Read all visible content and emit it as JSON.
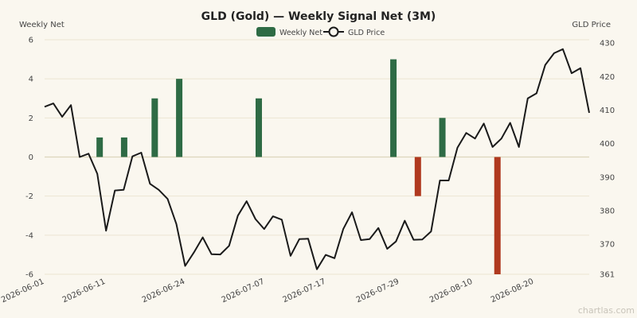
{
  "chart_data": {
    "type": "bar+line",
    "title": "GLD (Gold) — Weekly Signal Net (3M)",
    "y_left_label": "Weekly Net",
    "y_right_label": "GLD Price",
    "y_left_lim": [
      -6,
      6
    ],
    "y_right_lim": [
      361,
      431
    ],
    "y_left_ticks": [
      6,
      4,
      2,
      0,
      -2,
      -4,
      -6
    ],
    "y_right_ticks": [
      430,
      420,
      410,
      400,
      390,
      380,
      370,
      361
    ],
    "x_tick_labels": [
      "2026-06-01",
      "2026-06-11",
      "2026-06-24",
      "2026-07-07",
      "2026-07-17",
      "2026-07-29",
      "2026-08-10",
      "2026-08-20"
    ],
    "legend": [
      "Weekly Net",
      "GLD Price"
    ],
    "legend_position": "top-center",
    "grid": true,
    "colors": {
      "positive": "#2e6b45",
      "negative": "#b0391f",
      "line": "#1a1a1a",
      "grid": "#ece6d2",
      "zero_line": "#ddd6bc"
    },
    "bars": {
      "name": "Weekly Net",
      "dates": [
        "2026-06-10",
        "2026-06-14",
        "2026-06-19",
        "2026-06-23",
        "2026-07-06",
        "2026-07-28",
        "2026-08-01",
        "2026-08-05",
        "2026-08-14",
        "2026-08-19"
      ],
      "values": [
        1,
        1,
        3,
        4,
        3,
        5,
        -2,
        2,
        -6,
        0
      ],
      "_comment": ""
    },
    "price": {
      "name": "GLD Price",
      "values": [
        411,
        412,
        408,
        411.5,
        396,
        397,
        391,
        374,
        386,
        386.2,
        396.2,
        397.3,
        388,
        386.2,
        383.5,
        376,
        363.5,
        367.5,
        372,
        367,
        366.9,
        369.5,
        378.5,
        382.8,
        377.5,
        374.5,
        378.3,
        377.3,
        366.5,
        371.5,
        371.6,
        362.5,
        366.8,
        365.8,
        374.5,
        379.5,
        371.2,
        371.5,
        374.8,
        368.6,
        370.8,
        377,
        371.3,
        371.4,
        373.8,
        389,
        389,
        398.8,
        403.2,
        401.5,
        406,
        399,
        401.5,
        406.2,
        399,
        413.5,
        415,
        423.5,
        427,
        428.2,
        421,
        422.5,
        409.2
      ]
    }
  }
}
